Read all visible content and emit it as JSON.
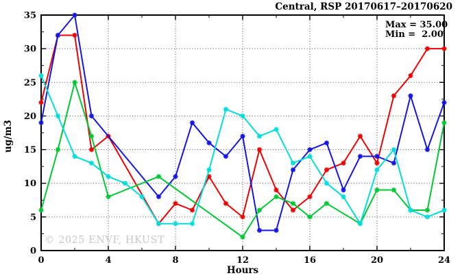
{
  "header": {
    "title": "Central, RSP 20170617–20170620"
  },
  "annotation": {
    "max_label": "Max = 35.00",
    "min_label": "Min =  2.00"
  },
  "watermark": "© 2025 ENVF, HKUST",
  "chart_data": {
    "type": "line",
    "title": "Central, RSP 20170617–20170620",
    "xlabel": "Hours",
    "ylabel": "ug/m3",
    "xlim": [
      0,
      24
    ],
    "ylim": [
      0,
      35
    ],
    "x_ticks": [
      0,
      4,
      8,
      12,
      16,
      20,
      24
    ],
    "y_ticks": [
      0,
      5,
      10,
      15,
      20,
      25,
      30,
      35
    ],
    "x_minor_step": 2,
    "y_minor_step": 2.5,
    "grid": true,
    "legend_position": "none",
    "stat_max": 35.0,
    "stat_min": 2.0,
    "x": [
      0,
      1,
      2,
      3,
      4,
      5,
      6,
      7,
      8,
      9,
      10,
      11,
      12,
      13,
      14,
      15,
      16,
      17,
      18,
      19,
      20,
      21,
      22,
      23,
      24
    ],
    "series": [
      {
        "name": "red",
        "color": "#ee0000",
        "values": [
          22,
          32,
          32,
          15,
          17,
          null,
          null,
          4,
          7,
          6,
          11,
          7,
          5,
          15,
          9,
          6,
          8,
          12,
          13,
          17,
          13,
          23,
          26,
          30,
          30
        ]
      },
      {
        "name": "blue",
        "color": "#1414e6",
        "values": [
          19,
          32,
          35,
          20,
          null,
          null,
          null,
          8,
          11,
          19,
          16,
          14,
          17,
          3,
          3,
          12,
          15,
          16,
          9,
          14,
          14,
          13,
          23,
          15,
          22
        ]
      },
      {
        "name": "green",
        "color": "#00c832",
        "values": [
          6,
          15,
          25,
          17,
          8,
          null,
          null,
          11,
          null,
          null,
          null,
          null,
          2,
          6,
          8,
          7,
          5,
          7,
          null,
          4,
          9,
          9,
          6,
          6,
          19
        ]
      },
      {
        "name": "cyan",
        "color": "#00dddd",
        "values": [
          26,
          20,
          14,
          13,
          11,
          10,
          8,
          4,
          4,
          4,
          12,
          21,
          20,
          17,
          18,
          13,
          14,
          10,
          8,
          4,
          12,
          15,
          6,
          5,
          6
        ]
      }
    ]
  }
}
